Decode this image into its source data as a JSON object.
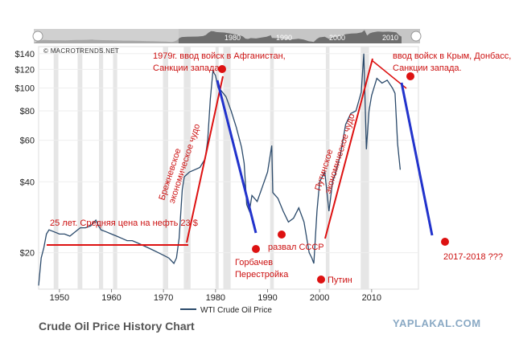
{
  "navigator": {
    "ticks": [
      "1980",
      "1990",
      "2000",
      "2010"
    ]
  },
  "source_label": "© MACROTRENDS.NET",
  "title": "Crude Oil Price History Chart",
  "watermark": "YAPLAKAL.COM",
  "colors": {
    "series": "#2b4a6b",
    "annotation": "#dd1111",
    "trend_blue": "#2233cc",
    "recession_band": "#e6e6e6",
    "navigator_bg": "#c6c6c6",
    "navigator_fill": "#6e6e6e"
  },
  "chart_data": {
    "type": "line",
    "scale": "log",
    "xlim": [
      1946,
      2019
    ],
    "ylim": [
      14,
      150
    ],
    "yticks": [
      20,
      40,
      60,
      80,
      100,
      120,
      140
    ],
    "ytick_labels": [
      "$20",
      "$40",
      "$60",
      "$80",
      "$100",
      "$120",
      "$140"
    ],
    "xticks": [
      1950,
      1960,
      1970,
      1980,
      1990,
      2000,
      2010
    ],
    "xtick_labels": [
      "1950",
      "1960",
      "1970",
      "1980",
      "1990",
      "2000",
      "2010"
    ],
    "grid": true,
    "legend": "bottom",
    "recession_bands": [
      [
        1948.9,
        1949.8
      ],
      [
        1953.5,
        1954.4
      ],
      [
        1957.6,
        1958.4
      ],
      [
        1960.3,
        1961.1
      ],
      [
        1969.9,
        1970.9
      ],
      [
        1973.9,
        1975.2
      ],
      [
        1980.0,
        1980.6
      ],
      [
        1981.5,
        1982.9
      ],
      [
        1990.5,
        1991.2
      ],
      [
        2001.2,
        2001.9
      ],
      [
        2007.9,
        2009.5
      ]
    ],
    "series": [
      {
        "name": "WTI Crude Oil Price",
        "x": [
          1946.0,
          1946.5,
          1947.0,
          1947.5,
          1948.0,
          1949.0,
          1950.0,
          1951.0,
          1952.0,
          1953.0,
          1954.0,
          1955.0,
          1956.0,
          1957.0,
          1957.5,
          1958.0,
          1959.0,
          1960.0,
          1961.0,
          1962.0,
          1963.0,
          1964.0,
          1965.0,
          1966.0,
          1967.0,
          1968.0,
          1969.0,
          1970.0,
          1971.0,
          1971.5,
          1972.0,
          1972.5,
          1973.0,
          1973.6,
          1974.0,
          1975.0,
          1976.0,
          1977.0,
          1978.0,
          1978.5,
          1979.0,
          1979.5,
          1980.0,
          1980.5,
          1981.0,
          1982.0,
          1983.0,
          1984.0,
          1985.0,
          1985.5,
          1986.0,
          1986.5,
          1987.0,
          1988.0,
          1989.0,
          1990.0,
          1990.8,
          1991.0,
          1992.0,
          1993.0,
          1994.0,
          1995.0,
          1996.0,
          1997.0,
          1998.0,
          1998.5,
          1998.9,
          1999.5,
          2000.0,
          2001.0,
          2001.8,
          2002.5,
          2003.0,
          2004.0,
          2005.0,
          2006.0,
          2007.0,
          2008.0,
          2008.5,
          2009.0,
          2009.5,
          2010.0,
          2011.0,
          2012.0,
          2013.0,
          2014.0,
          2014.5,
          2015.0,
          2015.5
        ],
        "values": [
          14.5,
          19,
          21,
          24,
          25,
          24.5,
          24,
          24,
          23.5,
          24.5,
          25.5,
          25.5,
          26,
          27.5,
          26,
          25,
          24.5,
          24,
          23.5,
          23,
          22.5,
          22.5,
          22,
          21.5,
          21,
          20.5,
          20,
          19.5,
          19,
          18.5,
          18,
          19,
          23,
          37,
          42,
          44,
          45,
          46,
          50,
          60,
          90,
          118,
          113,
          100,
          98,
          92,
          80,
          68,
          56,
          48,
          32,
          30,
          35,
          33,
          38,
          44,
          57,
          36,
          34,
          30,
          27,
          28,
          31,
          27,
          20,
          19,
          18,
          30,
          40,
          44,
          30,
          40,
          43,
          52,
          70,
          78,
          80,
          96,
          140,
          55,
          80,
          93,
          110,
          105,
          108,
          100,
          95,
          58,
          45
        ]
      }
    ]
  },
  "annotations": {
    "brezhnev_text": "Брежневское",
    "brezhnev_text2": "экономическое чудо",
    "putin_text": "Путинское",
    "putin_text2": "экономическое чудо",
    "avg_text": "25 лет. Средняя цена на нефть 23 $",
    "afgan_line1": "1979г. ввод войск в Афганистан,",
    "afgan_line2": "Санкции запада.",
    "crimea_line1": "ввод войск в Крым, Донбасс,",
    "crimea_line2": "Санкции запада.",
    "gorbachev_line1": "Горбачев",
    "gorbachev_line2": "Перестройка",
    "ussr_text": "развал СССР",
    "putin_dot_text": "Путин",
    "forecast_text": "2017-2018  ???"
  }
}
